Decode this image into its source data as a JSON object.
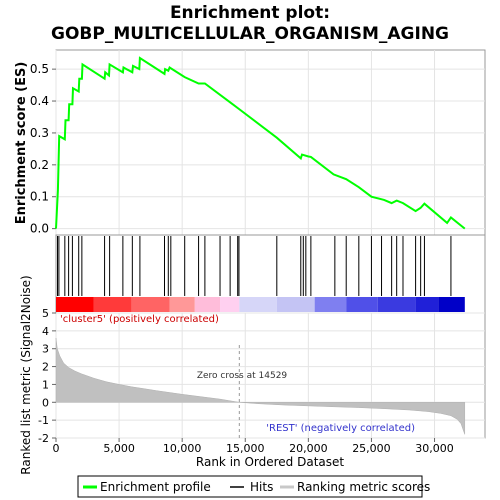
{
  "chart_data": {
    "type": "line",
    "title_line1": "Enrichment plot:",
    "title_line2": "GOBP_MULTICELLULAR_ORGANISM_AGING",
    "es_panel": {
      "ylabel": "Enrichment score (ES)",
      "ylim": [
        -0.02,
        0.56
      ],
      "yticks": [
        "0.0",
        "0.1",
        "0.2",
        "0.3",
        "0.4",
        "0.5"
      ],
      "ytick_values": [
        0.0,
        0.1,
        0.2,
        0.3,
        0.4,
        0.5
      ],
      "color": "#00ff00",
      "points": [
        [
          0,
          0.0
        ],
        [
          150,
          0.12
        ],
        [
          250,
          0.29
        ],
        [
          700,
          0.28
        ],
        [
          750,
          0.34
        ],
        [
          1000,
          0.34
        ],
        [
          1050,
          0.39
        ],
        [
          1300,
          0.39
        ],
        [
          1350,
          0.44
        ],
        [
          1800,
          0.43
        ],
        [
          1850,
          0.47
        ],
        [
          2050,
          0.47
        ],
        [
          2100,
          0.515
        ],
        [
          3850,
          0.47
        ],
        [
          3900,
          0.49
        ],
        [
          4200,
          0.48
        ],
        [
          4250,
          0.515
        ],
        [
          5300,
          0.49
        ],
        [
          5350,
          0.505
        ],
        [
          6050,
          0.49
        ],
        [
          6100,
          0.51
        ],
        [
          6600,
          0.5
        ],
        [
          6650,
          0.535
        ],
        [
          8600,
          0.485
        ],
        [
          8650,
          0.5
        ],
        [
          8900,
          0.495
        ],
        [
          9000,
          0.505
        ],
        [
          10200,
          0.475
        ],
        [
          11300,
          0.455
        ],
        [
          11800,
          0.455
        ],
        [
          14000,
          0.39
        ],
        [
          14500,
          0.375
        ],
        [
          17500,
          0.285
        ],
        [
          19400,
          0.22
        ],
        [
          19500,
          0.232
        ],
        [
          20000,
          0.226
        ],
        [
          20200,
          0.225
        ],
        [
          22000,
          0.17
        ],
        [
          23000,
          0.155
        ],
        [
          24000,
          0.13
        ],
        [
          25000,
          0.1
        ],
        [
          26000,
          0.09
        ],
        [
          26600,
          0.08
        ],
        [
          27000,
          0.088
        ],
        [
          27500,
          0.08
        ],
        [
          28500,
          0.055
        ],
        [
          28900,
          0.065
        ],
        [
          29200,
          0.078
        ],
        [
          31000,
          0.018
        ],
        [
          31300,
          0.035
        ],
        [
          32400,
          0.0
        ]
      ]
    },
    "hits_panel": {
      "hit_ranks": [
        120,
        230,
        700,
        1000,
        1300,
        1800,
        2050,
        3850,
        4250,
        5300,
        6050,
        6650,
        8600,
        8900,
        9100,
        10200,
        11300,
        11800,
        13000,
        13800,
        14400,
        14500,
        17500,
        19400,
        19600,
        19800,
        20200,
        22100,
        23000,
        24000,
        25000,
        25800,
        26600,
        27000,
        27500,
        28500,
        28900,
        29200,
        31300
      ],
      "band_segments": [
        {
          "from": 0,
          "to": 3000,
          "color": "#ff0000"
        },
        {
          "from": 3000,
          "to": 6000,
          "color": "#ff3a3a"
        },
        {
          "from": 6000,
          "to": 9000,
          "color": "#ff6464"
        },
        {
          "from": 9000,
          "to": 11000,
          "color": "#ff9898"
        },
        {
          "from": 11000,
          "to": 13000,
          "color": "#ffbdda"
        },
        {
          "from": 13000,
          "to": 14529,
          "color": "#ffd0f0"
        },
        {
          "from": 14529,
          "to": 17500,
          "color": "#d6d6f8"
        },
        {
          "from": 17500,
          "to": 20500,
          "color": "#c4c4f4"
        },
        {
          "from": 20500,
          "to": 23000,
          "color": "#7f7ff0"
        },
        {
          "from": 23000,
          "to": 25500,
          "color": "#5050e8"
        },
        {
          "from": 25500,
          "to": 28500,
          "color": "#3a3ae0"
        },
        {
          "from": 28500,
          "to": 30300,
          "color": "#2020d8"
        },
        {
          "from": 30300,
          "to": 32400,
          "color": "#0000c8"
        }
      ]
    },
    "metric_panel": {
      "ylabel": "Ranked list metric (Signal2Noise)",
      "ylim": [
        -2,
        5
      ],
      "yticks": [
        "5",
        "4",
        "3",
        "2",
        "1",
        "0",
        "-1",
        "-2"
      ],
      "ytick_values": [
        5,
        4,
        3,
        2,
        1,
        0,
        -1,
        -2
      ],
      "label_pos": "'cluster5' (positively correlated)",
      "label_neg": "'REST' (negatively correlated)",
      "zero_cross_label": "Zero cross at 14529",
      "zero_cross": 14529,
      "profile": [
        [
          0,
          3.6
        ],
        [
          100,
          3.0
        ],
        [
          300,
          2.6
        ],
        [
          600,
          2.2
        ],
        [
          1000,
          1.95
        ],
        [
          1500,
          1.75
        ],
        [
          2000,
          1.6
        ],
        [
          3000,
          1.35
        ],
        [
          4000,
          1.15
        ],
        [
          5000,
          1.0
        ],
        [
          6000,
          0.87
        ],
        [
          7000,
          0.76
        ],
        [
          8000,
          0.65
        ],
        [
          9000,
          0.55
        ],
        [
          10000,
          0.45
        ],
        [
          11000,
          0.36
        ],
        [
          12000,
          0.27
        ],
        [
          13000,
          0.18
        ],
        [
          14000,
          0.06
        ],
        [
          14529,
          0.0
        ],
        [
          16000,
          -0.08
        ],
        [
          18000,
          -0.15
        ],
        [
          20000,
          -0.2
        ],
        [
          22000,
          -0.25
        ],
        [
          24000,
          -0.3
        ],
        [
          26000,
          -0.36
        ],
        [
          28000,
          -0.43
        ],
        [
          29500,
          -0.52
        ],
        [
          30500,
          -0.62
        ],
        [
          31300,
          -0.75
        ],
        [
          31800,
          -0.95
        ],
        [
          32100,
          -1.2
        ],
        [
          32300,
          -1.6
        ],
        [
          32400,
          -1.8
        ]
      ]
    },
    "x_axis": {
      "xlabel": "Rank in Ordered Dataset",
      "xlim": [
        0,
        34000
      ],
      "xticks": [
        "0",
        "5,000",
        "10,000",
        "15,000",
        "20,000",
        "25,000",
        "30,000"
      ],
      "xtick_values": [
        0,
        5000,
        10000,
        15000,
        20000,
        25000,
        30000
      ]
    },
    "legend": {
      "placement": "bottom",
      "items": [
        "Enrichment profile",
        "Hits",
        "Ranking metric scores"
      ],
      "colors": [
        "#00ff00",
        "#000000",
        "#c8c8c8"
      ]
    }
  }
}
